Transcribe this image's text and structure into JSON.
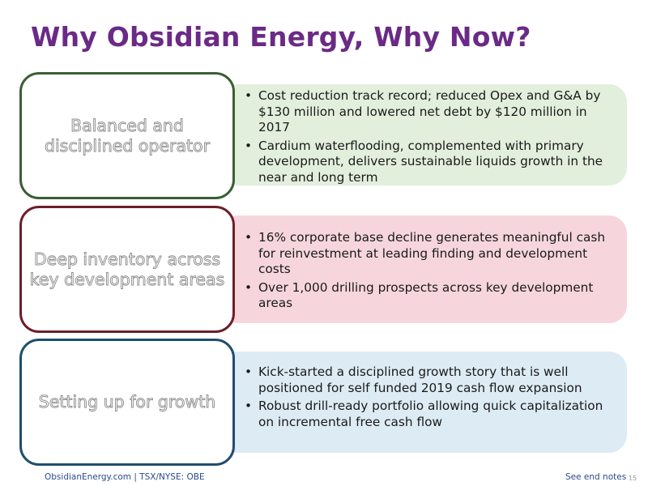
{
  "slide": {
    "title": "Why Obsidian Energy, Why Now?"
  },
  "rows": [
    {
      "label": "Balanced and disciplined operator",
      "border_color": "#3b5e34",
      "panel_color": "#e2efdd",
      "bullets": [
        "Cost reduction track record; reduced Opex and G&A by $130 million and lowered net debt by $120 million in 2017",
        "Cardium waterflooding, complemented with primary development, delivers sustainable liquids growth in the near and long term"
      ]
    },
    {
      "label": "Deep inventory across key development areas",
      "border_color": "#6e1e2a",
      "panel_color": "#f6d6dc",
      "bullets": [
        "16% corporate base decline generates meaningful cash for reinvestment at leading finding and development costs",
        "Over 1,000 drilling prospects across key development areas"
      ]
    },
    {
      "label": "Setting up for growth",
      "border_color": "#1f4e6e",
      "panel_color": "#ddebf5",
      "bullets": [
        "Kick-started a disciplined growth story that is well positioned for self funded 2019 cash flow expansion",
        "Robust drill-ready portfolio allowing quick capitalization on incremental free cash flow"
      ]
    }
  ],
  "footer": {
    "left": "ObsidianEnergy.com | TSX/NYSE: OBE",
    "right": "See end notes",
    "page_number": "15"
  }
}
